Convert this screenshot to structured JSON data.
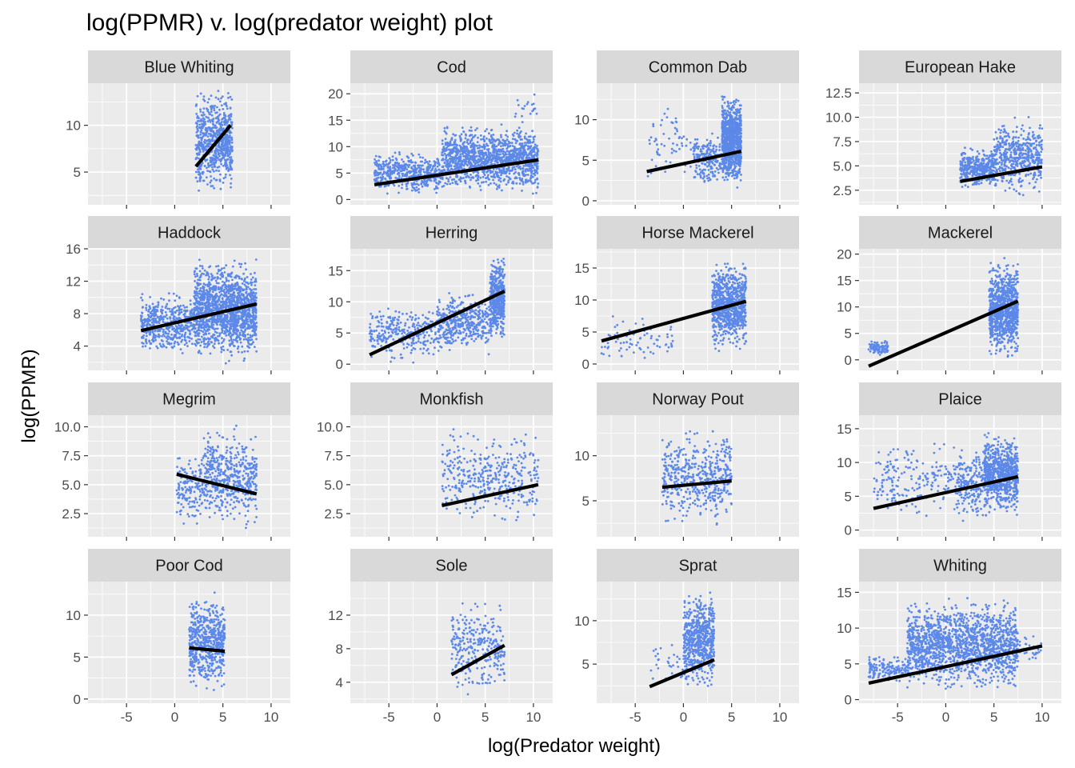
{
  "chart_data": {
    "type": "scatter",
    "title": "log(PPMR) v. log(predator weight) plot",
    "xlabel": "log(Predator weight)",
    "ylabel": "log(PPMR)",
    "xlim": [
      -9,
      12
    ],
    "x_ticks": [
      -5,
      0,
      5,
      10
    ],
    "grid": true,
    "facet_layout": "4x4",
    "colors": {
      "points": "#5C88E8",
      "fit_line": "#000000",
      "panel_bg": "#EBEBEB",
      "strip_bg": "#D9D9D9",
      "grid": "#FFFFFF"
    },
    "series": [
      "log(PPMR) observations",
      "linear fit"
    ],
    "panels": [
      {
        "name": "Blue Whiting",
        "ylim": [
          1.5,
          14.5
        ],
        "y_ticks": [
          5,
          10
        ],
        "fit": {
          "x": [
            2.2,
            5.8
          ],
          "y": [
            5.6,
            10.0
          ]
        },
        "clusters": [
          {
            "x": [
              2.2,
              6.0
            ],
            "y": [
              2.2,
              14.2
            ],
            "n": 700
          }
        ]
      },
      {
        "name": "Cod",
        "ylim": [
          -1,
          22
        ],
        "y_ticks": [
          0,
          5,
          10,
          15,
          20
        ],
        "fit": {
          "x": [
            -6.5,
            10.5
          ],
          "y": [
            2.8,
            7.5
          ]
        },
        "clusters": [
          {
            "x": [
              -6.5,
              0.5
            ],
            "y": [
              0.5,
              9.5
            ],
            "n": 500
          },
          {
            "x": [
              0.5,
              10.5
            ],
            "y": [
              0.5,
              15
            ],
            "n": 1300
          },
          {
            "x": [
              8,
              10.5
            ],
            "y": [
              14,
              21
            ],
            "n": 20
          }
        ]
      },
      {
        "name": "Common Dab",
        "ylim": [
          -0.5,
          14.5
        ],
        "y_ticks": [
          0,
          5,
          10
        ],
        "fit": {
          "x": [
            -3.8,
            6.0
          ],
          "y": [
            3.6,
            6.1
          ]
        },
        "clusters": [
          {
            "x": [
              -3.8,
              1
            ],
            "y": [
              1.5,
              12.5
            ],
            "n": 60
          },
          {
            "x": [
              1,
              4
            ],
            "y": [
              1.5,
              9
            ],
            "n": 200
          },
          {
            "x": [
              4,
              6
            ],
            "y": [
              1,
              14
            ],
            "n": 900
          }
        ]
      },
      {
        "name": "European Hake",
        "ylim": [
          1,
          13.5
        ],
        "y_ticks": [
          2.5,
          5.0,
          7.5,
          10.0,
          12.5
        ],
        "fit": {
          "x": [
            1.5,
            10.0
          ],
          "y": [
            3.4,
            4.9
          ]
        },
        "clusters": [
          {
            "x": [
              1.5,
              5
            ],
            "y": [
              2.5,
              7
            ],
            "n": 400
          },
          {
            "x": [
              5,
              10
            ],
            "y": [
              1.5,
              10.5
            ],
            "n": 500
          }
        ]
      },
      {
        "name": "Haddock",
        "ylim": [
          1,
          16
        ],
        "y_ticks": [
          4,
          8,
          12,
          16
        ],
        "fit": {
          "x": [
            -3.5,
            8.5
          ],
          "y": [
            5.9,
            9.2
          ]
        },
        "clusters": [
          {
            "x": [
              -3.5,
              2
            ],
            "y": [
              2.5,
              11
            ],
            "n": 500
          },
          {
            "x": [
              2,
              8.5
            ],
            "y": [
              1.5,
              15.5
            ],
            "n": 1500
          }
        ]
      },
      {
        "name": "Herring",
        "ylim": [
          -1,
          18.5
        ],
        "y_ticks": [
          0,
          5,
          10,
          15
        ],
        "fit": {
          "x": [
            -7.0,
            7.0
          ],
          "y": [
            1.5,
            11.7
          ]
        },
        "clusters": [
          {
            "x": [
              -7,
              0
            ],
            "y": [
              0,
              10
            ],
            "n": 300
          },
          {
            "x": [
              0,
              5.5
            ],
            "y": [
              1,
              12
            ],
            "n": 400
          },
          {
            "x": [
              5.5,
              7
            ],
            "y": [
              3,
              18
            ],
            "n": 500
          }
        ]
      },
      {
        "name": "Horse Mackerel",
        "ylim": [
          -1,
          18
        ],
        "y_ticks": [
          0,
          5,
          10,
          15
        ],
        "fit": {
          "x": [
            -8.5,
            6.5
          ],
          "y": [
            3.6,
            9.8
          ]
        },
        "clusters": [
          {
            "x": [
              -8.5,
              -1
            ],
            "y": [
              0,
              8
            ],
            "n": 80
          },
          {
            "x": [
              3,
              6.5
            ],
            "y": [
              1.5,
              17
            ],
            "n": 800
          }
        ]
      },
      {
        "name": "Mackerel",
        "ylim": [
          -2,
          21
        ],
        "y_ticks": [
          0,
          5,
          10,
          15,
          20
        ],
        "fit": {
          "x": [
            -8.0,
            7.5
          ],
          "y": [
            -1.2,
            11.1
          ]
        },
        "clusters": [
          {
            "x": [
              -8,
              -6
            ],
            "y": [
              0.5,
              4
            ],
            "n": 80
          },
          {
            "x": [
              4.5,
              7.5
            ],
            "y": [
              -1,
              20
            ],
            "n": 900
          }
        ]
      },
      {
        "name": "Megrim",
        "ylim": [
          0.5,
          11
        ],
        "y_ticks": [
          2.5,
          5.0,
          7.5,
          10.0
        ],
        "fit": {
          "x": [
            0.2,
            8.5
          ],
          "y": [
            5.9,
            4.2
          ]
        },
        "clusters": [
          {
            "x": [
              0.2,
              3
            ],
            "y": [
              1,
              8.5
            ],
            "n": 150
          },
          {
            "x": [
              3,
              8.5
            ],
            "y": [
              1,
              10.5
            ],
            "n": 500
          }
        ]
      },
      {
        "name": "Monkfish",
        "ylim": [
          0.5,
          11
        ],
        "y_ticks": [
          2.5,
          5.0,
          7.5,
          10.0
        ],
        "fit": {
          "x": [
            0.5,
            10.5
          ],
          "y": [
            3.2,
            5.0
          ]
        },
        "clusters": [
          {
            "x": [
              0.5,
              10.5
            ],
            "y": [
              1,
              10.5
            ],
            "n": 400
          }
        ]
      },
      {
        "name": "Norway Pout",
        "ylim": [
          1,
          14.5
        ],
        "y_ticks": [
          5,
          10
        ],
        "fit": {
          "x": [
            -2.2,
            5.0
          ],
          "y": [
            6.5,
            7.2
          ]
        },
        "clusters": [
          {
            "x": [
              -2.2,
              5
            ],
            "y": [
              1.5,
              14
            ],
            "n": 500
          }
        ]
      },
      {
        "name": "Plaice",
        "ylim": [
          -1,
          17
        ],
        "y_ticks": [
          0,
          5,
          10,
          15
        ],
        "fit": {
          "x": [
            -7.5,
            7.5
          ],
          "y": [
            3.2,
            7.9
          ]
        },
        "clusters": [
          {
            "x": [
              -7.5,
              1
            ],
            "y": [
              0.5,
              14
            ],
            "n": 200
          },
          {
            "x": [
              1,
              4
            ],
            "y": [
              0.5,
              13
            ],
            "n": 200
          },
          {
            "x": [
              4,
              7.5
            ],
            "y": [
              1.5,
              15
            ],
            "n": 800
          }
        ]
      },
      {
        "name": "Poor Cod",
        "ylim": [
          -0.5,
          14
        ],
        "y_ticks": [
          0,
          5,
          10
        ],
        "fit": {
          "x": [
            1.5,
            5.2
          ],
          "y": [
            6.1,
            5.7
          ]
        },
        "clusters": [
          {
            "x": [
              1.5,
              5.2
            ],
            "y": [
              0.5,
              13
            ],
            "n": 600
          }
        ]
      },
      {
        "name": "Sole",
        "ylim": [
          1.5,
          16
        ],
        "y_ticks": [
          4,
          8,
          12
        ],
        "fit": {
          "x": [
            1.5,
            7.0
          ],
          "y": [
            4.9,
            8.4
          ]
        },
        "clusters": [
          {
            "x": [
              1.5,
              7
            ],
            "y": [
              2,
              14.5
            ],
            "n": 300
          }
        ]
      },
      {
        "name": "Sprat",
        "ylim": [
          0.5,
          14.5
        ],
        "y_ticks": [
          5,
          10
        ],
        "fit": {
          "x": [
            -3.5,
            3.2
          ],
          "y": [
            2.4,
            5.5
          ]
        },
        "clusters": [
          {
            "x": [
              -3.5,
              0
            ],
            "y": [
              2,
              8
            ],
            "n": 30
          },
          {
            "x": [
              0,
              3.2
            ],
            "y": [
              1.5,
              14
            ],
            "n": 600
          }
        ]
      },
      {
        "name": "Whiting",
        "ylim": [
          -0.5,
          16.5
        ],
        "y_ticks": [
          0,
          5,
          10,
          15
        ],
        "fit": {
          "x": [
            -8.0,
            10.0
          ],
          "y": [
            2.3,
            7.5
          ]
        },
        "clusters": [
          {
            "x": [
              -8,
              -4
            ],
            "y": [
              2,
              6.5
            ],
            "n": 150
          },
          {
            "x": [
              -4,
              7.5
            ],
            "y": [
              0.5,
              15
            ],
            "n": 1600
          },
          {
            "x": [
              7.5,
              10
            ],
            "y": [
              4,
              10
            ],
            "n": 30
          }
        ]
      }
    ]
  }
}
